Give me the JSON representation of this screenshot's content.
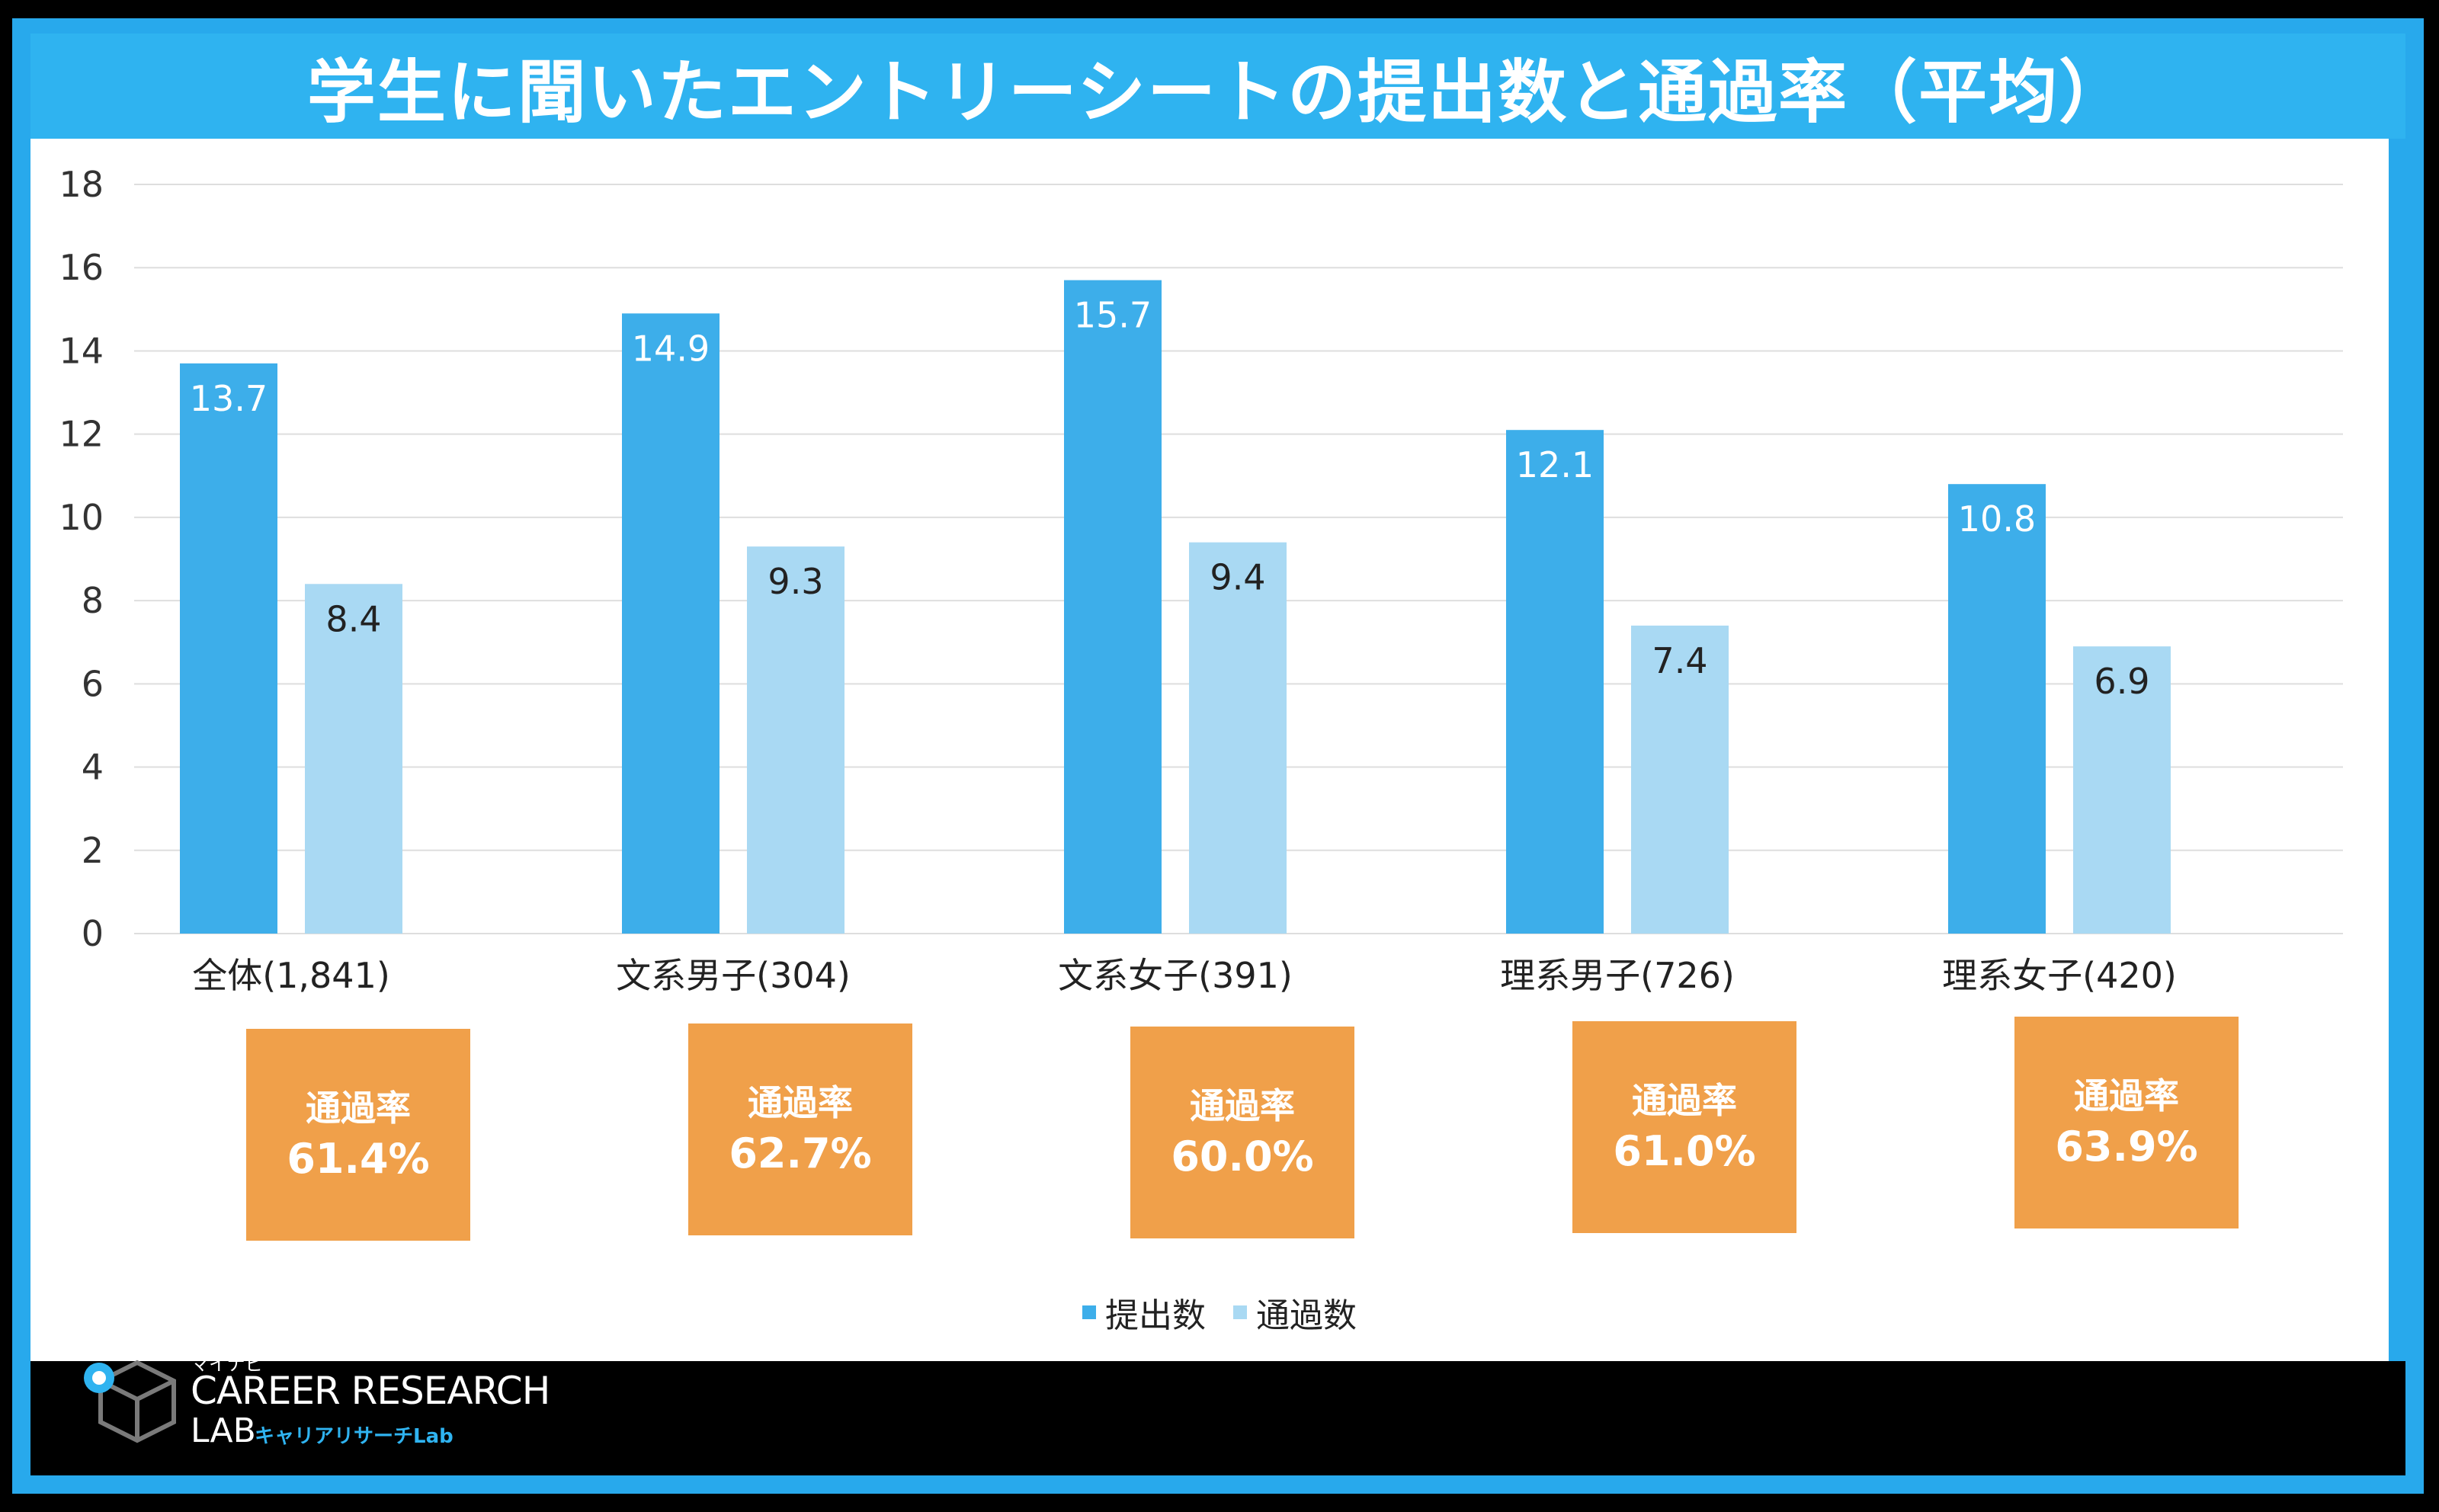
{
  "title": "学生に聞いたエントリーシートの提出数と通過率（平均）",
  "colors": {
    "frame": "#28a9ec",
    "banner": "#2fb3f0",
    "series_submitted": "#3daeea",
    "series_passed": "#a9d9f3",
    "rate_box": "#f0a04a"
  },
  "chart_data": {
    "type": "bar",
    "categories": [
      "全体(1,841)",
      "文系男子(304)",
      "文系女子(391)",
      "理系男子(726)",
      "理系女子(420)"
    ],
    "series": [
      {
        "name": "提出数",
        "values": [
          13.7,
          14.9,
          15.7,
          12.1,
          10.8
        ],
        "value_labels": [
          "13.7",
          "14.9",
          "15.7",
          "12.1",
          "10.8"
        ]
      },
      {
        "name": "通過数",
        "values": [
          8.4,
          9.3,
          9.4,
          7.4,
          6.9
        ],
        "value_labels": [
          "8.4",
          "9.3",
          "9.4",
          "7.4",
          "6.9"
        ]
      }
    ],
    "ylim": [
      0,
      18
    ],
    "yticks": [
      "0",
      "2",
      "4",
      "6",
      "8",
      "10",
      "12",
      "14",
      "16",
      "18"
    ],
    "grid": true,
    "legend": "bottom-center"
  },
  "pass_rates": [
    {
      "label": "通過率",
      "value": "61.4%"
    },
    {
      "label": "通過率",
      "value": "62.7%"
    },
    {
      "label": "通過率",
      "value": "60.0%"
    },
    {
      "label": "通過率",
      "value": "61.0%"
    },
    {
      "label": "通過率",
      "value": "63.9%"
    }
  ],
  "legend": {
    "items": [
      {
        "label": "提出数"
      },
      {
        "label": "通過数"
      }
    ]
  },
  "logo": {
    "small_text": "マイナビ",
    "main_text": "CAREER RESEARCH",
    "lab_text": "LAB",
    "kana_text": "キャリアリサーチLab",
    "icon": "cube-logo-icon"
  }
}
